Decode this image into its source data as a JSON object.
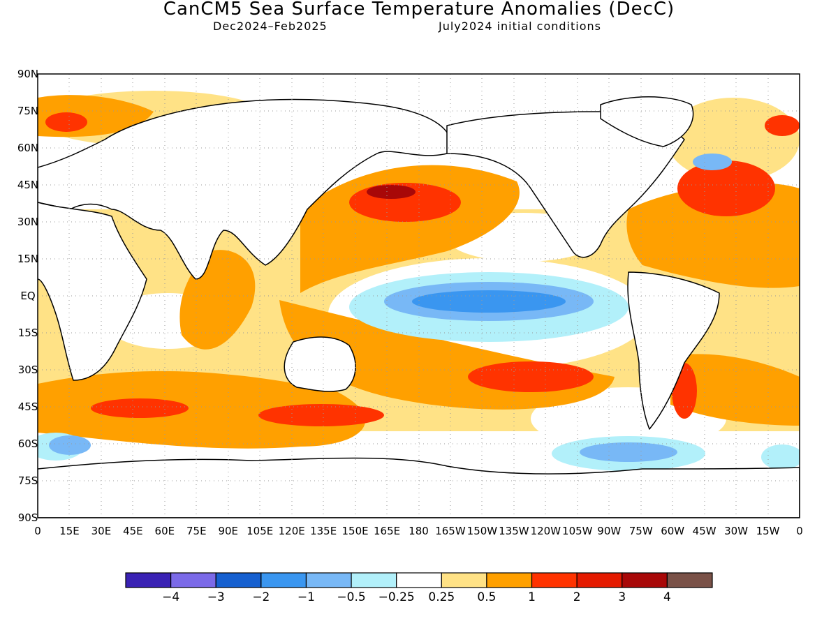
{
  "header": {
    "title": "CanCM5 Sea Surface Temperature Anomalies (DecC)",
    "period": "Dec2024–Feb2025",
    "init": "July2024 initial conditions"
  },
  "axes": {
    "lat_labels": [
      "90N",
      "75N",
      "60N",
      "45N",
      "30N",
      "15N",
      "EQ",
      "15S",
      "30S",
      "45S",
      "60S",
      "75S",
      "90S"
    ],
    "lon_labels": [
      "0",
      "15E",
      "30E",
      "45E",
      "60E",
      "75E",
      "90E",
      "105E",
      "120E",
      "135E",
      "150E",
      "165E",
      "180",
      "165W",
      "150W",
      "135W",
      "120W",
      "105W",
      "90W",
      "75W",
      "60W",
      "45W",
      "30W",
      "15W",
      "0"
    ]
  },
  "colorbar": {
    "colors": [
      "#3a22b4",
      "#7b6ae8",
      "#1660d0",
      "#3a96f0",
      "#78b8f6",
      "#b2f0fa",
      "#ffffff",
      "#ffe286",
      "#ffa000",
      "#ff3300",
      "#e41a00",
      "#a80808",
      "#7a5248"
    ],
    "labels": [
      "−4",
      "−3",
      "−2",
      "−1",
      "−0.5",
      "−0.25",
      "0.25",
      "0.5",
      "1",
      "2",
      "3",
      "4"
    ]
  },
  "legend_colors": {
    "warm1": "#ffe286",
    "warm2": "#ffa000",
    "warm3": "#ff3300",
    "warm4": "#e41a00",
    "warm5": "#a80808",
    "cool1": "#b2f0fa",
    "cool2": "#78b8f6",
    "cool3": "#3a96f0",
    "cool4": "#1660d0"
  }
}
